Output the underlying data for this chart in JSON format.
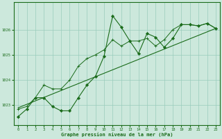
{
  "title": "Graphe pression niveau de la mer (hPa)",
  "background_color": "#cce8dc",
  "grid_color": "#99ccbb",
  "line_color": "#1a6b1a",
  "marker_color": "#1a6b1a",
  "xlim": [
    -0.5,
    23.5
  ],
  "ylim": [
    1022.2,
    1027.1
  ],
  "yticks": [
    1023,
    1024,
    1025,
    1026
  ],
  "xticks": [
    0,
    1,
    2,
    3,
    4,
    5,
    6,
    7,
    8,
    9,
    10,
    11,
    12,
    13,
    14,
    15,
    16,
    17,
    18,
    19,
    20,
    21,
    22,
    23
  ],
  "series1": [
    [
      0,
      1022.55
    ],
    [
      1,
      1022.85
    ],
    [
      2,
      1023.3
    ],
    [
      3,
      1023.3
    ],
    [
      4,
      1022.95
    ],
    [
      5,
      1022.78
    ],
    [
      6,
      1022.78
    ],
    [
      7,
      1023.3
    ],
    [
      8,
      1023.8
    ],
    [
      9,
      1024.15
    ],
    [
      10,
      1024.95
    ],
    [
      11,
      1026.55
    ],
    [
      12,
      1026.1
    ],
    [
      13,
      1025.55
    ],
    [
      14,
      1025.05
    ],
    [
      15,
      1025.85
    ],
    [
      16,
      1025.7
    ],
    [
      17,
      1025.3
    ],
    [
      18,
      1025.65
    ],
    [
      19,
      1026.2
    ],
    [
      20,
      1026.2
    ],
    [
      21,
      1026.15
    ],
    [
      22,
      1026.25
    ],
    [
      23,
      1026.05
    ]
  ],
  "series2": [
    [
      0,
      1022.85
    ],
    [
      1,
      1022.95
    ],
    [
      2,
      1023.3
    ],
    [
      3,
      1023.8
    ],
    [
      4,
      1023.65
    ],
    [
      5,
      1023.65
    ],
    [
      6,
      1024.0
    ],
    [
      7,
      1024.55
    ],
    [
      8,
      1024.85
    ],
    [
      9,
      1025.0
    ],
    [
      10,
      1025.2
    ],
    [
      11,
      1025.6
    ],
    [
      12,
      1025.35
    ],
    [
      13,
      1025.55
    ],
    [
      14,
      1025.55
    ],
    [
      15,
      1025.65
    ],
    [
      16,
      1025.35
    ],
    [
      17,
      1025.6
    ],
    [
      18,
      1026.0
    ],
    [
      19,
      1026.2
    ],
    [
      20,
      1026.2
    ],
    [
      21,
      1026.15
    ],
    [
      22,
      1026.25
    ],
    [
      23,
      1026.05
    ]
  ],
  "trend_line": [
    [
      0,
      1022.9
    ],
    [
      23,
      1026.05
    ]
  ]
}
